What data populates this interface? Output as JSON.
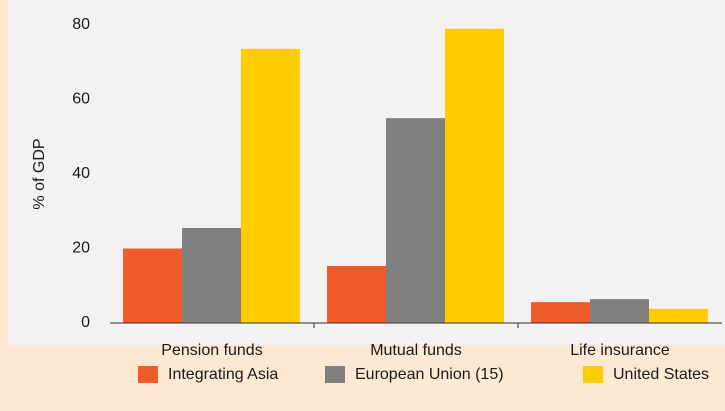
{
  "chart_data": {
    "type": "bar",
    "y_axis_label": "% of GDP",
    "categories": [
      "Pension funds",
      "Mutual funds",
      "Life insurance"
    ],
    "series": [
      {
        "name": "Integrating Asia",
        "color": "#f15a2b",
        "values": [
          20,
          15.3,
          5.6
        ]
      },
      {
        "name": "European Union (15)",
        "color": "#808080",
        "values": [
          25.5,
          55,
          6.4
        ]
      },
      {
        "name": "United States",
        "color": "#ffcc00",
        "values": [
          73.6,
          79,
          3.8
        ]
      }
    ],
    "ylim": [
      0,
      80
    ],
    "yticks": [
      0,
      20,
      40,
      60,
      80
    ],
    "grid": false,
    "legend": "bottom"
  }
}
